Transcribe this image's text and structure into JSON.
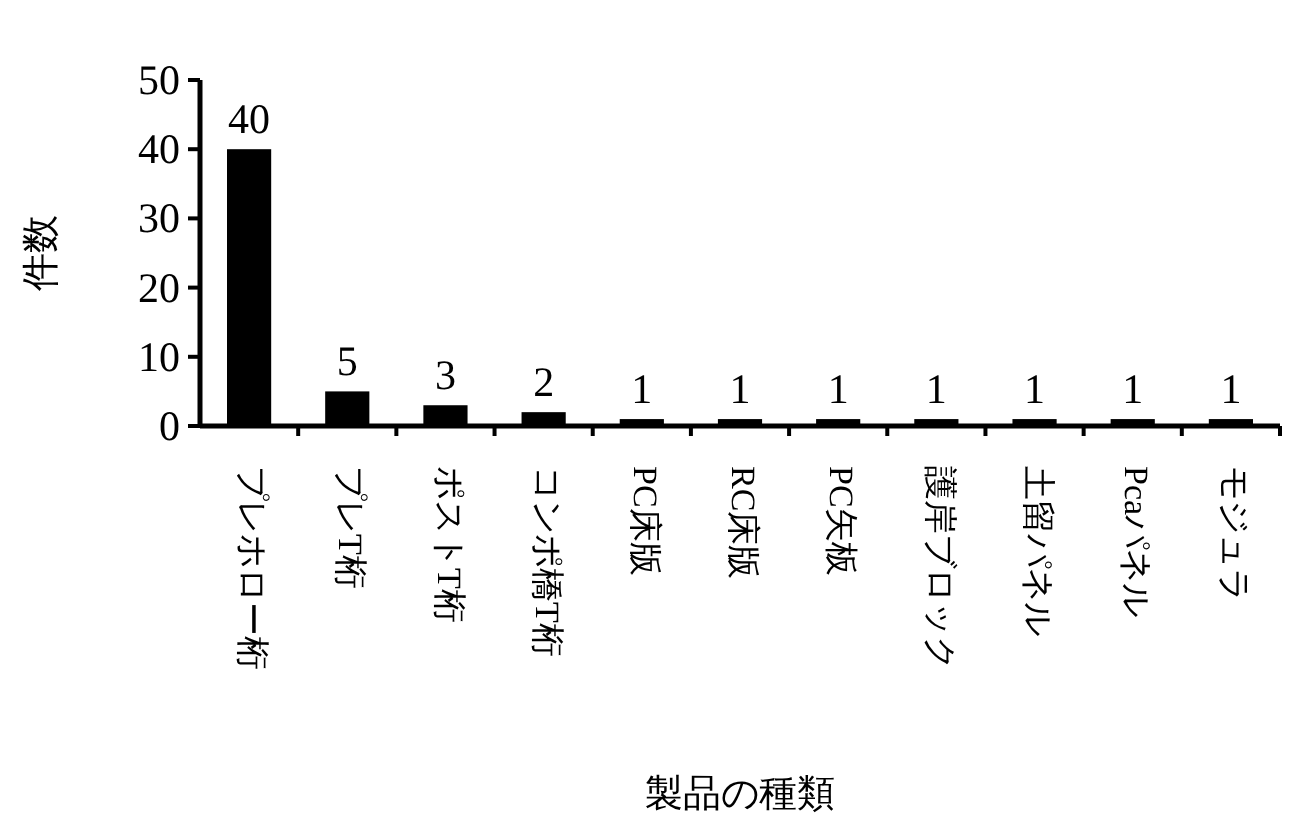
{
  "chart_data": {
    "type": "bar",
    "xlabel": "製品の種類",
    "ylabel": "件数",
    "categories": [
      "プレホロー桁",
      "プレT桁",
      "ポストT桁",
      "コンポ橋T桁",
      "PC床版",
      "RC床版",
      "PC矢板",
      "護岸ブロック",
      "土留パネル",
      "Pcaパネル",
      "モジュラ"
    ],
    "values": [
      40,
      5,
      3,
      2,
      1,
      1,
      1,
      1,
      1,
      1,
      1
    ],
    "color": "#000000",
    "ylim": [
      0,
      50
    ],
    "yticks": [
      0,
      10,
      20,
      30,
      40,
      50
    ],
    "data_labels": true,
    "grid": false
  }
}
